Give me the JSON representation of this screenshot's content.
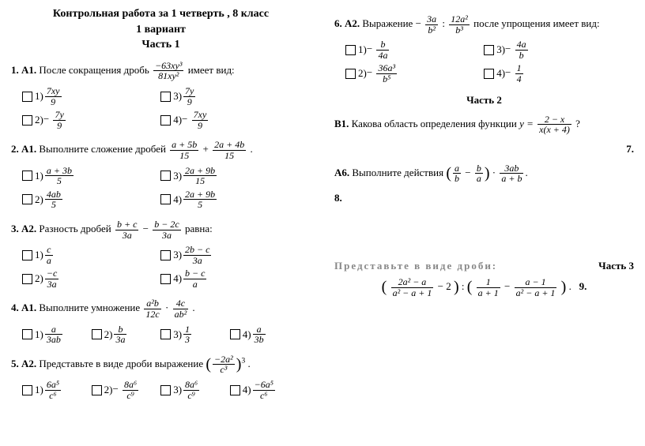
{
  "header": {
    "title_line1": "Контрольная работа за 1 четверть , 8 класс",
    "title_line2": "1 вариант",
    "title_line3": "Часть 1"
  },
  "left": [
    {
      "num": "1.",
      "label": "А1.",
      "stem_before": "После сокращения дробь",
      "stem_after": "имеет вид:",
      "frac": {
        "num": "−63xy³",
        "den": "81xy²"
      },
      "answers": [
        {
          "n": "1)",
          "frac": {
            "num": "7xy",
            "den": "9"
          },
          "neg": false
        },
        {
          "n": "3)",
          "frac": {
            "num": "7y",
            "den": "9"
          },
          "neg": false
        },
        {
          "n": "2)",
          "frac": {
            "num": "7y",
            "den": "9"
          },
          "neg": true
        },
        {
          "n": "4)",
          "frac": {
            "num": "7xy",
            "den": "9"
          },
          "neg": true
        }
      ]
    },
    {
      "num": "2.",
      "label": "А1.",
      "stem_before": "Выполните сложение дробей",
      "stem_after": ".",
      "expr": {
        "f1": {
          "num": "a + 5b",
          "den": "15"
        },
        "op": "+",
        "f2": {
          "num": "2a + 4b",
          "den": "15"
        }
      },
      "answers": [
        {
          "n": "1)",
          "frac": {
            "num": "a + 3b",
            "den": "5"
          }
        },
        {
          "n": "3)",
          "frac": {
            "num": "2a + 9b",
            "den": "15"
          }
        },
        {
          "n": "2)",
          "frac": {
            "num": "4ab",
            "den": "5"
          }
        },
        {
          "n": "4)",
          "frac": {
            "num": "2a + 9b",
            "den": "5"
          }
        }
      ]
    },
    {
      "num": "3.",
      "label": "А2.",
      "stem_before": "Разность дробей",
      "stem_after": "равна:",
      "expr": {
        "f1": {
          "num": "b + c",
          "den": "3a"
        },
        "op": "−",
        "f2": {
          "num": "b − 2c",
          "den": "3a"
        }
      },
      "answers": [
        {
          "n": "1)",
          "frac": {
            "num": "c",
            "den": "a"
          }
        },
        {
          "n": "3)",
          "frac": {
            "num": "2b − c",
            "den": "3a"
          }
        },
        {
          "n": "2)",
          "frac": {
            "num": "−c",
            "den": "3a"
          }
        },
        {
          "n": "4)",
          "frac": {
            "num": "b − c",
            "den": "a"
          }
        }
      ]
    },
    {
      "num": "4.",
      "label": "А1.",
      "stem_before": "Выполните умножение",
      "stem_after": ".",
      "expr": {
        "f1": {
          "num": "a²b",
          "den": "12c"
        },
        "op": "·",
        "f2": {
          "num": "4c",
          "den": "ab²"
        }
      },
      "row4": true,
      "answers": [
        {
          "n": "1)",
          "frac": {
            "num": "a",
            "den": "3ab"
          }
        },
        {
          "n": "2)",
          "frac": {
            "num": "b",
            "den": "3a"
          }
        },
        {
          "n": "3)",
          "frac": {
            "num": "1",
            "den": "3"
          }
        },
        {
          "n": "4)",
          "frac": {
            "num": "a",
            "den": "3b"
          }
        }
      ]
    },
    {
      "num": "5.",
      "label": "А2.",
      "stem_before": "Представьте в виде дроби выражение",
      "stem_after": ".",
      "paren_frac": {
        "num": "−2a²",
        "den": "c³",
        "pow": "3"
      },
      "row4": true,
      "answers": [
        {
          "n": "1)",
          "frac": {
            "num": "6a⁵",
            "den": "c⁶"
          }
        },
        {
          "n": "2)",
          "frac": {
            "num": "8a⁶",
            "den": "c⁹"
          },
          "neg": true
        },
        {
          "n": "3)",
          "frac": {
            "num": "8a⁶",
            "den": "c⁹"
          }
        },
        {
          "n": "4)",
          "frac": {
            "num": "−6a⁵",
            "den": "c⁶"
          }
        }
      ]
    }
  ],
  "right": {
    "q6": {
      "num": "6.",
      "label": "А2.",
      "stem_before": "Выражение",
      "stem_after": "после упрощения имеет вид:",
      "expr": {
        "neg1": true,
        "f1": {
          "num": "3a",
          "den": "b²"
        },
        "op": ":",
        "f2": {
          "num": "12a²",
          "den": "b³"
        }
      },
      "answers": [
        {
          "n": "1)",
          "frac": {
            "num": "b",
            "den": "4a"
          },
          "neg": true
        },
        {
          "n": "3)",
          "frac": {
            "num": "4a",
            "den": "b"
          },
          "neg": true
        },
        {
          "n": "2)",
          "frac": {
            "num": "36a³",
            "den": "b⁵"
          },
          "neg": true
        },
        {
          "n": "4)",
          "frac": {
            "num": "1",
            "den": "4"
          },
          "neg": true
        }
      ]
    },
    "part2_title": "Часть  2",
    "b1": {
      "label": "В1.",
      "text_before": "Какова область определения функции",
      "y_eq": "y =",
      "frac": {
        "num": "2 − x",
        "den": "x(x + 4)"
      },
      "q": "?"
    },
    "q7": {
      "num": "7.",
      "label": "А6.",
      "text_before": "Выполните действия",
      "paren_expr": {
        "f1": {
          "num": "a",
          "den": "b"
        },
        "op": "−",
        "f2": {
          "num": "b",
          "den": "a"
        }
      },
      "dot": "·",
      "outer_frac": {
        "num": "3ab",
        "den": "a + b"
      },
      "period": "."
    },
    "q8": "8.",
    "part3_title": "Часть 3",
    "present_title": "Представьте  в  виде  дроби:",
    "expr9": {
      "p1f1": {
        "num": "2a² − a",
        "den": "a² − a + 1"
      },
      "minus2": "− 2",
      "colon": ":",
      "p2f1": {
        "num": "1",
        "den": "a + 1"
      },
      "minus": "−",
      "p2f2": {
        "num": "a − 1",
        "den": "a² − a + 1"
      },
      "period": "."
    },
    "q9": "9."
  }
}
